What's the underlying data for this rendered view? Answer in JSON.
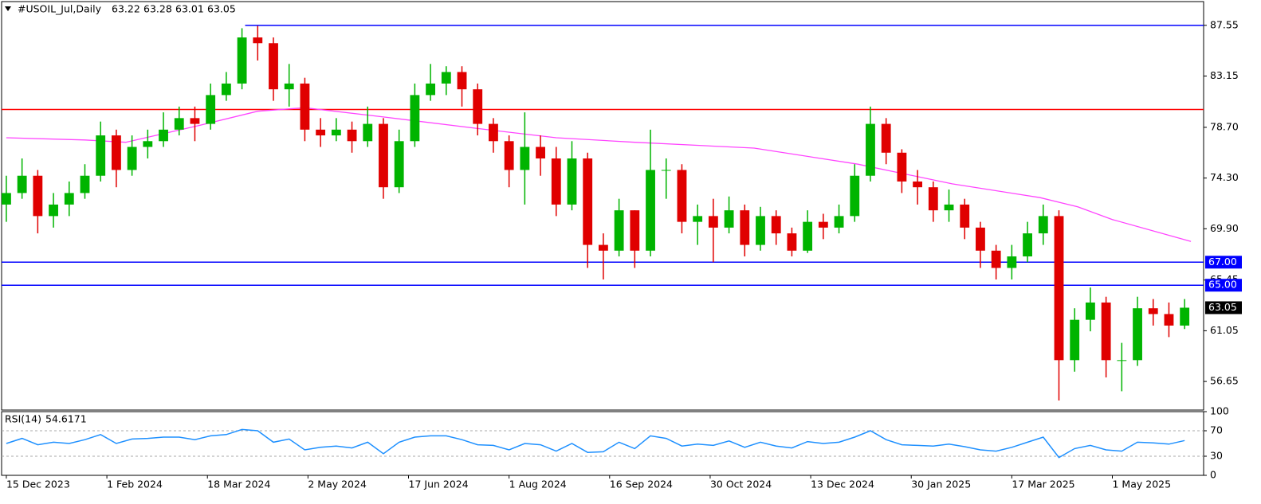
{
  "chart_data": {
    "type": "candlestick",
    "header": {
      "symbol": "#USOIL_Jul,Daily",
      "ohlc": [
        63.22,
        63.28,
        63.01,
        63.05
      ]
    },
    "x": [
      0,
      5,
      10,
      15,
      20,
      25,
      30,
      35,
      40,
      45,
      50,
      55,
      60,
      65,
      70,
      75,
      80,
      85,
      90,
      95,
      100,
      105,
      110,
      115,
      120,
      125,
      130,
      135,
      140,
      145,
      150,
      155,
      160,
      165,
      170,
      175,
      180,
      185,
      190,
      195,
      200,
      205,
      210,
      215,
      220,
      225,
      230,
      235,
      240,
      245,
      250,
      255,
      260,
      265,
      270,
      275,
      280,
      285,
      290,
      295,
      300,
      305,
      310,
      315,
      320,
      325,
      330,
      335,
      340,
      345,
      350,
      355,
      360,
      365,
      370,
      375
    ],
    "open": [
      72,
      73,
      74.5,
      71,
      72,
      73,
      74.5,
      78,
      75,
      77,
      77.5,
      78.5,
      79.5,
      79,
      81.5,
      82.5,
      86.5,
      86,
      82,
      82.5,
      78.5,
      78,
      78.5,
      77.5,
      79,
      73.5,
      77.5,
      81.5,
      82.5,
      83.5,
      82,
      79,
      77.5,
      75,
      77,
      76,
      72,
      76,
      68.5,
      68,
      71.5,
      68,
      75,
      75,
      70.5,
      71,
      70,
      71.5,
      68.5,
      71,
      69.5,
      68,
      70.5,
      70,
      71,
      74.5,
      79,
      76.5,
      74,
      73.5,
      71.5,
      72,
      70,
      68,
      66.5,
      67.5,
      69.5,
      71,
      58.5,
      62,
      63.5,
      58.5,
      58.5,
      63,
      62.5,
      61.5
    ],
    "high": [
      74.5,
      76,
      75,
      73,
      74,
      75.5,
      79.2,
      78.5,
      78,
      78.5,
      80,
      80.5,
      80.5,
      82.5,
      83.5,
      87.3,
      87.5,
      86.5,
      84.2,
      83,
      79.5,
      79.5,
      79.2,
      80.5,
      79.5,
      78.5,
      82.5,
      84.2,
      84,
      84,
      82.5,
      79.5,
      78,
      80,
      78,
      77,
      77.5,
      76.5,
      69.5,
      72.5,
      71.5,
      78.5,
      76,
      75.5,
      72,
      72.5,
      72.7,
      72,
      71.8,
      71.5,
      70,
      71.5,
      71.2,
      72,
      75.5,
      80.5,
      79.5,
      76.8,
      75,
      74,
      73.3,
      72.5,
      70.5,
      68.5,
      68.5,
      70.5,
      72,
      71.5,
      63,
      64.8,
      64,
      60,
      64,
      63.8,
      63.5,
      63.8
    ],
    "low": [
      70.5,
      72.5,
      69.5,
      70,
      71,
      72.5,
      74,
      73.5,
      74.5,
      76,
      77,
      78,
      77.5,
      78.5,
      81,
      82,
      84.5,
      81,
      80.5,
      77.5,
      77,
      77.5,
      76.5,
      77,
      72.5,
      73,
      77,
      81,
      81.5,
      80.5,
      78,
      76.5,
      73.5,
      72,
      74.5,
      71,
      71.5,
      66.5,
      65.5,
      67.5,
      66.5,
      67.5,
      72.5,
      69.5,
      68.5,
      67,
      69.5,
      67.5,
      68,
      68.5,
      67.5,
      67.8,
      69,
      69.5,
      70.5,
      74,
      75.5,
      73,
      72,
      70.5,
      70.5,
      69,
      66.5,
      65.5,
      65.5,
      67,
      68.5,
      55,
      57.5,
      61,
      57,
      55.8,
      58,
      61.5,
      60.5,
      61.2
    ],
    "close": [
      73,
      74.5,
      71,
      72,
      73,
      74.5,
      78,
      75,
      77,
      77.5,
      78.5,
      79.5,
      79,
      81.5,
      82.5,
      86.5,
      86,
      82,
      82.5,
      78.5,
      78,
      78.5,
      77.5,
      79,
      73.5,
      77.5,
      81.5,
      82.5,
      83.5,
      82,
      79,
      77.5,
      75,
      77,
      76,
      72,
      76,
      68.5,
      68,
      71.5,
      68,
      75,
      75,
      70.5,
      71,
      70,
      71.5,
      68.5,
      71,
      69.5,
      68,
      70.5,
      70,
      71,
      74.5,
      79,
      76.5,
      74,
      73.5,
      71.5,
      72,
      70,
      68,
      66.5,
      67.5,
      69.5,
      71,
      58.5,
      62,
      63.5,
      58.5,
      58.5,
      63,
      62.5,
      61.5,
      63.05
    ],
    "up_color": "#00b400",
    "down_color": "#e00000",
    "ma": {
      "color": "#ff44ff",
      "x": [
        0,
        25,
        38,
        62,
        80,
        95,
        120,
        150,
        175,
        200,
        238,
        271,
        301,
        329,
        341,
        352,
        377
      ],
      "values": [
        77.8,
        77.6,
        77.4,
        78.9,
        80.1,
        80.4,
        79.6,
        78.6,
        77.8,
        77.4,
        76.9,
        75.5,
        73.8,
        72.6,
        71.8,
        70.7,
        68.8
      ]
    },
    "levels": [
      {
        "value": 87.55,
        "color": "#0000ff",
        "from": 76
      },
      {
        "value": 80.25,
        "color": "#ff0000"
      },
      {
        "value": 67,
        "color": "#0000ff",
        "label": "67.00"
      },
      {
        "value": 65,
        "color": "#0000ff",
        "label": "65.00"
      }
    ],
    "xlim": [
      -1,
      378
    ],
    "xticks": [
      {
        "value": 0,
        "label": "15 Dec 2023"
      },
      {
        "value": 32,
        "label": "1 Feb 2024"
      },
      {
        "value": 64,
        "label": "18 Mar 2024"
      },
      {
        "value": 96,
        "label": "2 May 2024"
      },
      {
        "value": 128,
        "label": "17 Jun 2024"
      },
      {
        "value": 160,
        "label": "1 Aug 2024"
      },
      {
        "value": 192,
        "label": "16 Sep 2024"
      },
      {
        "value": 224,
        "label": "30 Oct 2024"
      },
      {
        "value": 256,
        "label": "13 Dec 2024"
      },
      {
        "value": 288,
        "label": "30 Jan 2025"
      },
      {
        "value": 320,
        "label": "17 Mar 2025"
      },
      {
        "value": 352,
        "label": "1 May 2025"
      }
    ],
    "ylim": [
      54.17,
      89.61
    ],
    "yticks": [
      87.55,
      83.15,
      {
        "value": 78.7,
        "label": "78.70"
      },
      {
        "value": 74.3,
        "label": "74.30"
      },
      {
        "value": 69.9,
        "label": "69.90"
      },
      65.45,
      61.05,
      56.65
    ],
    "rsi": {
      "name": "RSI(14)",
      "last": 54.6171,
      "color": "#1e90ff",
      "ylim": [
        0,
        100
      ],
      "yticks": [
        0,
        30,
        70,
        100
      ],
      "levels": [
        30,
        70
      ],
      "values": [
        50,
        58,
        48,
        52,
        50,
        56,
        64,
        50,
        57,
        58,
        60,
        60,
        56,
        62,
        64,
        72,
        70,
        52,
        57,
        40,
        44,
        46,
        43,
        52,
        34,
        52,
        60,
        62,
        62,
        56,
        48,
        47,
        40,
        50,
        48,
        38,
        50,
        36,
        37,
        52,
        42,
        62,
        58,
        46,
        49,
        47,
        54,
        44,
        52,
        46,
        43,
        53,
        50,
        52,
        60,
        70,
        56,
        48,
        47,
        46,
        49,
        45,
        40,
        38,
        44,
        52,
        60,
        28,
        42,
        47,
        40,
        38,
        52,
        51,
        49,
        54.6
      ]
    }
  }
}
